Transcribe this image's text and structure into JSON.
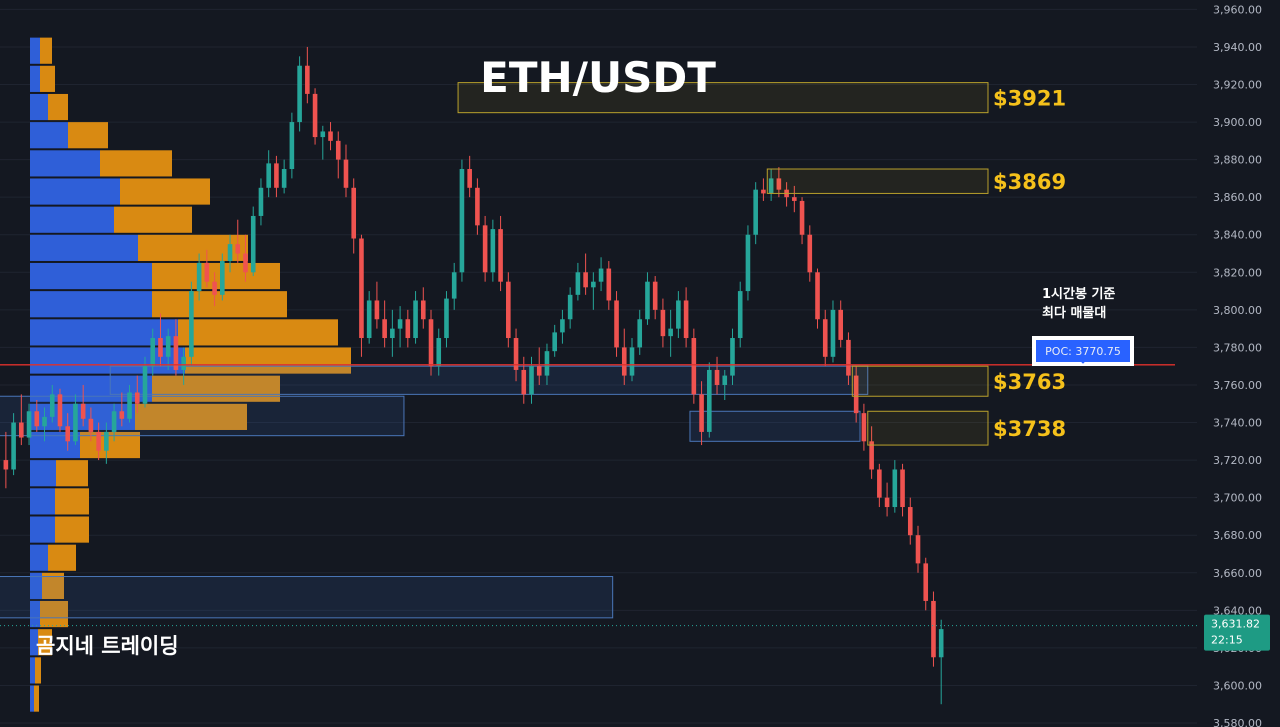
{
  "title": "ETH/USDT",
  "brand": "곰지네 트레이딩",
  "annotation_lines": [
    "1시간봉 기준",
    "최다 매물대"
  ],
  "poc_label": "POC: 3770.75",
  "colors": {
    "background": "#141821",
    "up": "#26a69a",
    "down": "#ef5350",
    "profile_up": "#2f5fd8",
    "profile_down": "#d98a12",
    "level": "#f5c11b",
    "poc_line": "#e0302b"
  },
  "chart_data": {
    "type": "candlestick",
    "title": "ETH/USDT",
    "ylim": [
      3580,
      3965
    ],
    "y_ticks": [
      {
        "v": 3580,
        "label": "3,580.00"
      },
      {
        "v": 3600,
        "label": "3,600.00"
      },
      {
        "v": 3620,
        "label": "3,620.00"
      },
      {
        "v": 3640,
        "label": "3,640.00"
      },
      {
        "v": 3660,
        "label": "3,660.00"
      },
      {
        "v": 3680,
        "label": "3,680.00"
      },
      {
        "v": 3700,
        "label": "3,700.00"
      },
      {
        "v": 3720,
        "label": "3,720.00"
      },
      {
        "v": 3740,
        "label": "3,740.00"
      },
      {
        "v": 3760,
        "label": "3,760.00"
      },
      {
        "v": 3780,
        "label": "3,780.00"
      },
      {
        "v": 3800,
        "label": "3,800.00"
      },
      {
        "v": 3820,
        "label": "3,820.00"
      },
      {
        "v": 3840,
        "label": "3,840.00"
      },
      {
        "v": 3860,
        "label": "3,860.00"
      },
      {
        "v": 3880,
        "label": "3,880.00"
      },
      {
        "v": 3900,
        "label": "3,900.00"
      },
      {
        "v": 3920,
        "label": "3,920.00"
      },
      {
        "v": 3940,
        "label": "3,940.00"
      },
      {
        "v": 3960,
        "label": "3,960.00"
      }
    ],
    "current_price": {
      "value": 3631.82,
      "label": "3,631.82",
      "countdown": "22:15"
    },
    "poc": 3770.75,
    "candles": [
      [
        3720,
        3735,
        3705,
        3715
      ],
      [
        3715,
        3745,
        3712,
        3740
      ],
      [
        3740,
        3755,
        3728,
        3732
      ],
      [
        3732,
        3750,
        3728,
        3746
      ],
      [
        3746,
        3752,
        3735,
        3738
      ],
      [
        3738,
        3748,
        3730,
        3743
      ],
      [
        3743,
        3760,
        3740,
        3755
      ],
      [
        3755,
        3758,
        3735,
        3738
      ],
      [
        3738,
        3745,
        3725,
        3730
      ],
      [
        3730,
        3755,
        3728,
        3750
      ],
      [
        3750,
        3760,
        3738,
        3742
      ],
      [
        3742,
        3748,
        3730,
        3735
      ],
      [
        3735,
        3740,
        3720,
        3725
      ],
      [
        3725,
        3740,
        3718,
        3735
      ],
      [
        3735,
        3750,
        3730,
        3746
      ],
      [
        3746,
        3756,
        3738,
        3742
      ],
      [
        3742,
        3760,
        3740,
        3756
      ],
      [
        3756,
        3765,
        3745,
        3750
      ],
      [
        3750,
        3775,
        3748,
        3770
      ],
      [
        3770,
        3790,
        3765,
        3785
      ],
      [
        3785,
        3798,
        3770,
        3775
      ],
      [
        3775,
        3790,
        3768,
        3786
      ],
      [
        3786,
        3795,
        3765,
        3768
      ],
      [
        3768,
        3780,
        3760,
        3775
      ],
      [
        3775,
        3815,
        3770,
        3810
      ],
      [
        3810,
        3830,
        3805,
        3825
      ],
      [
        3825,
        3832,
        3812,
        3815
      ],
      [
        3815,
        3820,
        3802,
        3808
      ],
      [
        3808,
        3830,
        3805,
        3826
      ],
      [
        3826,
        3840,
        3820,
        3835
      ],
      [
        3835,
        3848,
        3825,
        3830
      ],
      [
        3830,
        3840,
        3815,
        3820
      ],
      [
        3820,
        3855,
        3818,
        3850
      ],
      [
        3850,
        3870,
        3845,
        3865
      ],
      [
        3865,
        3885,
        3860,
        3878
      ],
      [
        3878,
        3882,
        3860,
        3865
      ],
      [
        3865,
        3880,
        3862,
        3875
      ],
      [
        3875,
        3905,
        3870,
        3900
      ],
      [
        3900,
        3935,
        3895,
        3930
      ],
      [
        3930,
        3940,
        3910,
        3915
      ],
      [
        3915,
        3918,
        3888,
        3892
      ],
      [
        3892,
        3898,
        3880,
        3895
      ],
      [
        3895,
        3900,
        3885,
        3890
      ],
      [
        3890,
        3895,
        3870,
        3880
      ],
      [
        3880,
        3888,
        3860,
        3865
      ],
      [
        3865,
        3870,
        3830,
        3838
      ],
      [
        3838,
        3840,
        3775,
        3785
      ],
      [
        3785,
        3810,
        3782,
        3805
      ],
      [
        3805,
        3815,
        3790,
        3795
      ],
      [
        3795,
        3805,
        3780,
        3785
      ],
      [
        3785,
        3800,
        3775,
        3790
      ],
      [
        3790,
        3802,
        3780,
        3795
      ],
      [
        3795,
        3800,
        3780,
        3785
      ],
      [
        3785,
        3810,
        3782,
        3805
      ],
      [
        3805,
        3812,
        3790,
        3795
      ],
      [
        3795,
        3800,
        3765,
        3770
      ],
      [
        3770,
        3790,
        3765,
        3785
      ],
      [
        3785,
        3810,
        3780,
        3806
      ],
      [
        3806,
        3825,
        3800,
        3820
      ],
      [
        3820,
        3880,
        3815,
        3875
      ],
      [
        3875,
        3882,
        3860,
        3865
      ],
      [
        3865,
        3870,
        3840,
        3845
      ],
      [
        3845,
        3850,
        3815,
        3820
      ],
      [
        3820,
        3848,
        3815,
        3843
      ],
      [
        3843,
        3850,
        3810,
        3815
      ],
      [
        3815,
        3820,
        3780,
        3785
      ],
      [
        3785,
        3790,
        3762,
        3768
      ],
      [
        3768,
        3775,
        3750,
        3755
      ],
      [
        3755,
        3775,
        3750,
        3770
      ],
      [
        3770,
        3780,
        3760,
        3765
      ],
      [
        3765,
        3782,
        3760,
        3778
      ],
      [
        3778,
        3792,
        3775,
        3788
      ],
      [
        3788,
        3800,
        3782,
        3795
      ],
      [
        3795,
        3812,
        3790,
        3808
      ],
      [
        3808,
        3825,
        3805,
        3820
      ],
      [
        3820,
        3830,
        3808,
        3812
      ],
      [
        3812,
        3820,
        3800,
        3815
      ],
      [
        3815,
        3828,
        3810,
        3822
      ],
      [
        3822,
        3826,
        3800,
        3805
      ],
      [
        3805,
        3810,
        3775,
        3780
      ],
      [
        3780,
        3790,
        3760,
        3765
      ],
      [
        3765,
        3785,
        3762,
        3780
      ],
      [
        3780,
        3800,
        3776,
        3795
      ],
      [
        3795,
        3820,
        3792,
        3815
      ],
      [
        3815,
        3818,
        3795,
        3800
      ],
      [
        3800,
        3806,
        3780,
        3786
      ],
      [
        3786,
        3800,
        3775,
        3790
      ],
      [
        3790,
        3810,
        3785,
        3805
      ],
      [
        3805,
        3812,
        3780,
        3785
      ],
      [
        3785,
        3790,
        3750,
        3755
      ],
      [
        3755,
        3762,
        3728,
        3735
      ],
      [
        3735,
        3772,
        3732,
        3768
      ],
      [
        3768,
        3775,
        3755,
        3760
      ],
      [
        3760,
        3768,
        3752,
        3765
      ],
      [
        3765,
        3790,
        3760,
        3785
      ],
      [
        3785,
        3815,
        3780,
        3810
      ],
      [
        3810,
        3845,
        3805,
        3840
      ],
      [
        3840,
        3868,
        3835,
        3864
      ],
      [
        3864,
        3870,
        3858,
        3862
      ],
      [
        3862,
        3875,
        3858,
        3870
      ],
      [
        3870,
        3876,
        3860,
        3864
      ],
      [
        3864,
        3868,
        3855,
        3860
      ],
      [
        3860,
        3866,
        3852,
        3858
      ],
      [
        3858,
        3860,
        3835,
        3840
      ],
      [
        3840,
        3845,
        3815,
        3820
      ],
      [
        3820,
        3822,
        3790,
        3795
      ],
      [
        3795,
        3800,
        3770,
        3775
      ],
      [
        3775,
        3805,
        3772,
        3800
      ],
      [
        3800,
        3805,
        3780,
        3784
      ],
      [
        3784,
        3788,
        3760,
        3765
      ],
      [
        3765,
        3770,
        3740,
        3745
      ],
      [
        3745,
        3750,
        3725,
        3730
      ],
      [
        3730,
        3738,
        3710,
        3715
      ],
      [
        3715,
        3718,
        3695,
        3700
      ],
      [
        3700,
        3708,
        3690,
        3695
      ],
      [
        3695,
        3720,
        3692,
        3715
      ],
      [
        3715,
        3718,
        3690,
        3695
      ],
      [
        3695,
        3700,
        3675,
        3680
      ],
      [
        3680,
        3685,
        3660,
        3665
      ],
      [
        3665,
        3668,
        3640,
        3645
      ],
      [
        3645,
        3650,
        3610,
        3615
      ],
      [
        3615,
        3635,
        3590,
        3630
      ]
    ],
    "volume_profile": [
      {
        "price": 3938,
        "up": 10,
        "down": 12
      },
      {
        "price": 3923,
        "up": 10,
        "down": 15
      },
      {
        "price": 3908,
        "up": 18,
        "down": 20
      },
      {
        "price": 3893,
        "up": 38,
        "down": 40
      },
      {
        "price": 3878,
        "up": 70,
        "down": 72
      },
      {
        "price": 3863,
        "up": 90,
        "down": 90
      },
      {
        "price": 3848,
        "up": 84,
        "down": 78
      },
      {
        "price": 3833,
        "up": 108,
        "down": 110
      },
      {
        "price": 3818,
        "up": 122,
        "down": 128
      },
      {
        "price": 3803,
        "up": 122,
        "down": 135
      },
      {
        "price": 3788,
        "up": 148,
        "down": 160
      },
      {
        "price": 3773,
        "up": 155,
        "down": 166
      },
      {
        "price": 3758,
        "up": 122,
        "down": 128
      },
      {
        "price": 3743,
        "up": 105,
        "down": 112
      },
      {
        "price": 3728,
        "up": 50,
        "down": 60
      },
      {
        "price": 3713,
        "up": 26,
        "down": 32
      },
      {
        "price": 3698,
        "up": 25,
        "down": 34
      },
      {
        "price": 3683,
        "up": 25,
        "down": 34
      },
      {
        "price": 3668,
        "up": 18,
        "down": 28
      },
      {
        "price": 3653,
        "up": 12,
        "down": 22
      },
      {
        "price": 3638,
        "up": 10,
        "down": 28
      },
      {
        "price": 3623,
        "up": 8,
        "down": 14
      },
      {
        "price": 3608,
        "up": 5,
        "down": 6
      },
      {
        "price": 3593,
        "up": 4,
        "down": 5
      }
    ],
    "levels": [
      {
        "label": "$3921",
        "top": 3921,
        "bottom": 3905,
        "from": 59,
        "to": 128
      },
      {
        "label": "$3869",
        "top": 3875,
        "bottom": 3862,
        "from": 99,
        "to": 128
      },
      {
        "label": "$3763",
        "top": 3770,
        "bottom": 3754,
        "from": 110,
        "to": 128
      },
      {
        "label": "$3738",
        "top": 3746,
        "bottom": 3728,
        "from": 112,
        "to": 128
      }
    ],
    "zones": [
      {
        "top": 3770,
        "bottom": 3755,
        "from": 14,
        "to": 112
      },
      {
        "top": 3754,
        "bottom": 3733,
        "from": -4,
        "to": 52
      },
      {
        "top": 3746,
        "bottom": 3730,
        "from": 89,
        "to": 111
      },
      {
        "top": 3658,
        "bottom": 3636,
        "from": -4,
        "to": 79
      }
    ]
  }
}
